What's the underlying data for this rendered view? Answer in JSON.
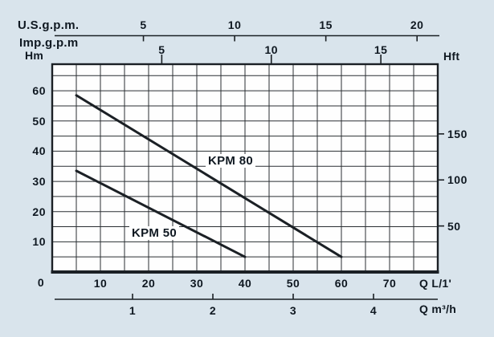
{
  "colors": {
    "background": "#d9e4ec",
    "plot_background": "#fefefe",
    "line": "#1b2025",
    "grid": "#2a2f33",
    "text": "#0f1821"
  },
  "top_axes": {
    "us_gpm": {
      "label": "U.S.g.p.m.",
      "ticks": [
        5,
        10,
        15,
        20
      ],
      "l_per_min_per_unit": 3.785
    },
    "imp_gpm": {
      "label": "Imp.g.p.m",
      "ticks": [
        5,
        10,
        15
      ],
      "l_per_min_per_unit": 4.546
    }
  },
  "left_axis": {
    "label": "Hm",
    "ticks": [
      10,
      20,
      30,
      40,
      50,
      60
    ],
    "origin_label": "0"
  },
  "right_axis": {
    "label": "Hft",
    "ticks": [
      50,
      100,
      150
    ],
    "m_per_ft": 0.3048
  },
  "bottom_axes": {
    "l_per_min": {
      "label": "Q L/1'",
      "ticks": [
        10,
        20,
        30,
        40,
        50,
        60,
        70
      ]
    },
    "m3_per_h": {
      "label": "Q m³/h",
      "ticks": [
        1,
        2,
        3,
        4
      ],
      "l_per_min_per_unit": 16.667
    }
  },
  "chart_data": {
    "type": "line",
    "xlabel": "Q L/1'",
    "ylabel": "Hm",
    "xlim": [
      0,
      80
    ],
    "ylim": [
      0,
      68.8
    ],
    "grid_step_x": 5,
    "grid_step_y": 5,
    "grid": "on",
    "series": [
      {
        "name": "KPM 80",
        "x": [
          5,
          60
        ],
        "y": [
          58.5,
          5
        ]
      },
      {
        "name": "KPM 50",
        "x": [
          5,
          40
        ],
        "y": [
          33.5,
          5
        ]
      }
    ]
  }
}
